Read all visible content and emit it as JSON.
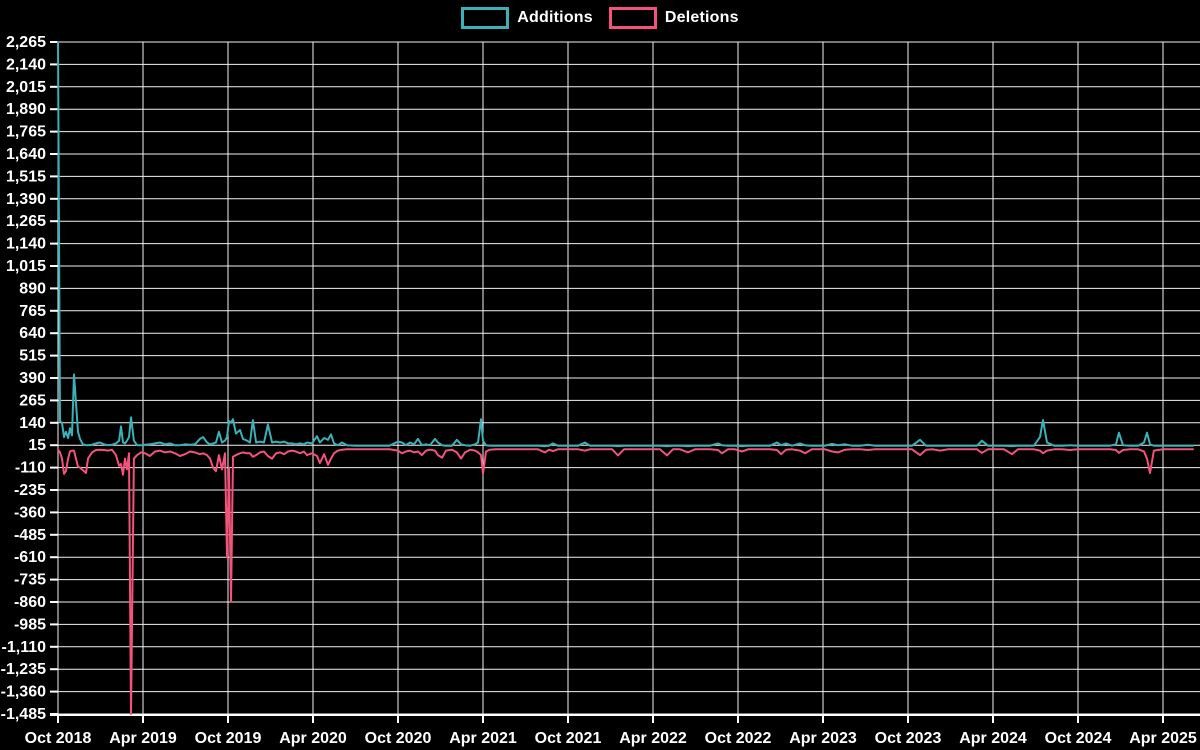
{
  "colors": {
    "background": "#000000",
    "grid": "#f2f2f2",
    "axis": "#ffffff",
    "text": "#ffffff",
    "additions": "#3ab1b8",
    "deletions": "#f4527a"
  },
  "legend": {
    "items": [
      {
        "label": "Additions",
        "color": "#3ab1b8"
      },
      {
        "label": "Deletions",
        "color": "#f4527a"
      }
    ]
  },
  "chart_data": {
    "type": "line",
    "title": "",
    "legend_position": "top-center",
    "grid": true,
    "x_axis": {
      "start": "Oct 2018",
      "end": "Apr 2025",
      "tick_interval_months": 6,
      "tick_labels": [
        "Oct 2018",
        "Apr 2019",
        "Oct 2019",
        "Apr 2020",
        "Oct 2020",
        "Apr 2021",
        "Oct 2021",
        "Apr 2022",
        "Oct 2022",
        "Apr 2023",
        "Oct 2023",
        "Apr 2024",
        "Oct 2024",
        "Apr 2025"
      ],
      "data_extends_to_months": 80.2
    },
    "y_axis": {
      "max": 2265,
      "min": -1485,
      "tick_step": 125,
      "tick_labels": [
        "2,265",
        "2,140",
        "2,015",
        "1,890",
        "1,765",
        "1,640",
        "1,515",
        "1,390",
        "1,265",
        "1,140",
        "1,015",
        "890",
        "765",
        "640",
        "515",
        "390",
        "265",
        "140",
        "15",
        "-110",
        "-235",
        "-360",
        "-485",
        "-610",
        "-735",
        "-860",
        "-985",
        "-1,110",
        "-1,235",
        "-1,360",
        "-1,485"
      ]
    },
    "series_names": [
      "Additions",
      "Deletions"
    ],
    "points_format": [
      "months_since_oct_2018",
      "additions",
      "deletions"
    ],
    "points": [
      [
        0,
        2265,
        -10
      ],
      [
        0.14,
        150,
        -25
      ],
      [
        0.28,
        140,
        -60
      ],
      [
        0.42,
        60,
        -145
      ],
      [
        0.56,
        90,
        -130
      ],
      [
        0.71,
        55,
        -60
      ],
      [
        0.85,
        110,
        -20
      ],
      [
        0.99,
        70,
        -15
      ],
      [
        1.13,
        410,
        -15
      ],
      [
        1.41,
        90,
        -105
      ],
      [
        1.55,
        50,
        -110
      ],
      [
        1.76,
        20,
        -125
      ],
      [
        1.98,
        15,
        -140
      ],
      [
        2.12,
        15,
        -60
      ],
      [
        2.4,
        18,
        -25
      ],
      [
        2.68,
        25,
        -12
      ],
      [
        2.96,
        30,
        -10
      ],
      [
        3.25,
        20,
        -12
      ],
      [
        3.53,
        15,
        -15
      ],
      [
        3.81,
        18,
        -10
      ],
      [
        4.09,
        25,
        -40
      ],
      [
        4.31,
        40,
        -100
      ],
      [
        4.45,
        120,
        -90
      ],
      [
        4.59,
        30,
        -150
      ],
      [
        4.73,
        25,
        -60
      ],
      [
        4.87,
        40,
        -120
      ],
      [
        5.01,
        60,
        -30
      ],
      [
        5.15,
        170,
        -1485
      ],
      [
        5.36,
        40,
        -60
      ],
      [
        5.58,
        15,
        -40
      ],
      [
        5.86,
        15,
        -25
      ],
      [
        6.14,
        18,
        -30
      ],
      [
        6.49,
        20,
        -45
      ],
      [
        6.85,
        25,
        -20
      ],
      [
        7.2,
        30,
        -15
      ],
      [
        7.55,
        20,
        -25
      ],
      [
        7.91,
        25,
        -20
      ],
      [
        8.26,
        15,
        -30
      ],
      [
        8.61,
        15,
        -45
      ],
      [
        8.96,
        20,
        -35
      ],
      [
        9.32,
        18,
        -20
      ],
      [
        9.67,
        20,
        -25
      ],
      [
        10.02,
        50,
        -35
      ],
      [
        10.24,
        60,
        -30
      ],
      [
        10.52,
        30,
        -40
      ],
      [
        10.73,
        20,
        -60
      ],
      [
        10.94,
        25,
        -110
      ],
      [
        11.15,
        30,
        -130
      ],
      [
        11.36,
        90,
        -40
      ],
      [
        11.58,
        30,
        -120
      ],
      [
        11.79,
        40,
        -30
      ],
      [
        11.93,
        60,
        -610
      ],
      [
        12.07,
        150,
        -110
      ],
      [
        12.21,
        140,
        -860
      ],
      [
        12.35,
        160,
        -50
      ],
      [
        12.56,
        80,
        -40
      ],
      [
        12.85,
        100,
        -30
      ],
      [
        13.06,
        50,
        -25
      ],
      [
        13.34,
        40,
        -30
      ],
      [
        13.55,
        30,
        -30
      ],
      [
        13.76,
        155,
        -50
      ],
      [
        13.98,
        30,
        -40
      ],
      [
        14.26,
        35,
        -25
      ],
      [
        14.54,
        30,
        -20
      ],
      [
        14.82,
        130,
        -45
      ],
      [
        15.11,
        30,
        -60
      ],
      [
        15.39,
        35,
        -30
      ],
      [
        15.67,
        30,
        -25
      ],
      [
        15.95,
        35,
        -35
      ],
      [
        16.24,
        25,
        -20
      ],
      [
        16.52,
        25,
        -15
      ],
      [
        16.8,
        20,
        -20
      ],
      [
        17.08,
        25,
        -30
      ],
      [
        17.36,
        20,
        -20
      ],
      [
        17.58,
        30,
        -40
      ],
      [
        17.93,
        25,
        -30
      ],
      [
        18.28,
        65,
        -45
      ],
      [
        18.49,
        30,
        -85
      ],
      [
        18.78,
        55,
        -35
      ],
      [
        19.06,
        45,
        -95
      ],
      [
        19.27,
        75,
        -60
      ],
      [
        19.48,
        25,
        -30
      ],
      [
        19.76,
        15,
        -15
      ],
      [
        20.05,
        30,
        -10
      ],
      [
        20.4,
        15,
        -8
      ],
      [
        21,
        12,
        -8
      ],
      [
        21.6,
        12,
        -8
      ],
      [
        22.2,
        12,
        -8
      ],
      [
        22.8,
        12,
        -8
      ],
      [
        23.4,
        12,
        -8
      ],
      [
        24,
        35,
        -15
      ],
      [
        24.28,
        30,
        -30
      ],
      [
        24.56,
        15,
        -20
      ],
      [
        24.85,
        30,
        -15
      ],
      [
        25.13,
        20,
        -25
      ],
      [
        25.41,
        50,
        -20
      ],
      [
        25.69,
        15,
        -40
      ],
      [
        25.98,
        20,
        -15
      ],
      [
        26.26,
        15,
        -10
      ],
      [
        26.61,
        50,
        -15
      ],
      [
        26.82,
        30,
        -40
      ],
      [
        27.11,
        15,
        -55
      ],
      [
        27.39,
        12,
        -15
      ],
      [
        27.81,
        12,
        -10
      ],
      [
        28.16,
        45,
        -25
      ],
      [
        28.45,
        20,
        -60
      ],
      [
        28.73,
        15,
        -25
      ],
      [
        29.08,
        12,
        -10
      ],
      [
        29.44,
        20,
        -15
      ],
      [
        29.65,
        30,
        -25
      ],
      [
        29.86,
        160,
        -40
      ],
      [
        30,
        40,
        -145
      ],
      [
        30.21,
        15,
        -20
      ],
      [
        30.49,
        12,
        -10
      ],
      [
        30.92,
        12,
        -8
      ],
      [
        31.41,
        12,
        -8
      ],
      [
        31.91,
        12,
        -8
      ],
      [
        32.47,
        12,
        -8
      ],
      [
        32.96,
        12,
        -8
      ],
      [
        33.46,
        12,
        -8
      ],
      [
        33.88,
        12,
        -8
      ],
      [
        34.38,
        10,
        -25
      ],
      [
        34.66,
        12,
        -10
      ],
      [
        34.94,
        25,
        -18
      ],
      [
        35.29,
        12,
        -8
      ],
      [
        35.72,
        12,
        -8
      ],
      [
        36.14,
        12,
        -8
      ],
      [
        36.71,
        12,
        -8
      ],
      [
        37.2,
        30,
        -15
      ],
      [
        37.55,
        12,
        -8
      ],
      [
        38.12,
        12,
        -8
      ],
      [
        38.68,
        12,
        -8
      ],
      [
        39.11,
        12,
        -8
      ],
      [
        39.53,
        10,
        -42
      ],
      [
        39.95,
        12,
        -8
      ],
      [
        40.52,
        12,
        -8
      ],
      [
        41.08,
        12,
        -8
      ],
      [
        41.65,
        12,
        -8
      ],
      [
        42,
        12,
        -8
      ],
      [
        42.49,
        12,
        -8
      ],
      [
        42.99,
        10,
        -42
      ],
      [
        43.41,
        12,
        -8
      ],
      [
        43.91,
        12,
        -8
      ],
      [
        44.47,
        10,
        -25
      ],
      [
        44.96,
        12,
        -8
      ],
      [
        45.53,
        12,
        -8
      ],
      [
        46.02,
        12,
        -8
      ],
      [
        46.59,
        25,
        -12
      ],
      [
        46.87,
        15,
        -30
      ],
      [
        47.29,
        12,
        -8
      ],
      [
        47.79,
        12,
        -8
      ],
      [
        48.28,
        10,
        -20
      ],
      [
        48.71,
        12,
        -8
      ],
      [
        49.2,
        12,
        -8
      ],
      [
        49.69,
        12,
        -8
      ],
      [
        50.26,
        12,
        -8
      ],
      [
        50.75,
        30,
        -12
      ],
      [
        51.04,
        15,
        -35
      ],
      [
        51.39,
        25,
        -10
      ],
      [
        51.81,
        12,
        -8
      ],
      [
        52.38,
        25,
        -15
      ],
      [
        52.73,
        15,
        -30
      ],
      [
        53.22,
        12,
        -8
      ],
      [
        53.65,
        12,
        -8
      ],
      [
        54.14,
        12,
        -8
      ],
      [
        54.64,
        22,
        -20
      ],
      [
        55.06,
        15,
        -25
      ],
      [
        55.55,
        20,
        -10
      ],
      [
        56.05,
        12,
        -8
      ],
      [
        56.61,
        12,
        -8
      ],
      [
        57.18,
        18,
        -12
      ],
      [
        57.67,
        12,
        -8
      ],
      [
        58.16,
        12,
        -8
      ],
      [
        58.73,
        12,
        -8
      ],
      [
        59.29,
        12,
        -8
      ],
      [
        59.79,
        12,
        -8
      ],
      [
        60.28,
        12,
        -8
      ],
      [
        60.85,
        45,
        -40
      ],
      [
        61.27,
        12,
        -10
      ],
      [
        61.76,
        12,
        -8
      ],
      [
        62.26,
        12,
        -15
      ],
      [
        62.82,
        12,
        -8
      ],
      [
        63.32,
        12,
        -8
      ],
      [
        63.81,
        12,
        -8
      ],
      [
        64.38,
        12,
        -8
      ],
      [
        64.87,
        12,
        -8
      ],
      [
        65.22,
        40,
        -28
      ],
      [
        65.65,
        12,
        -8
      ],
      [
        66.21,
        12,
        -8
      ],
      [
        66.78,
        12,
        -8
      ],
      [
        67.34,
        10,
        -35
      ],
      [
        67.76,
        12,
        -8
      ],
      [
        68.33,
        12,
        -8
      ],
      [
        68.89,
        12,
        -8
      ],
      [
        69.32,
        60,
        -15
      ],
      [
        69.53,
        155,
        -30
      ],
      [
        69.81,
        30,
        -15
      ],
      [
        70.31,
        12,
        -8
      ],
      [
        70.87,
        12,
        -8
      ],
      [
        71.44,
        15,
        -12
      ],
      [
        72,
        12,
        -8
      ],
      [
        72.56,
        12,
        -8
      ],
      [
        73.13,
        12,
        -8
      ],
      [
        73.69,
        12,
        -8
      ],
      [
        74.26,
        12,
        -8
      ],
      [
        74.68,
        20,
        -12
      ],
      [
        74.89,
        85,
        -28
      ],
      [
        75.18,
        15,
        -12
      ],
      [
        75.67,
        12,
        -8
      ],
      [
        76.24,
        12,
        -8
      ],
      [
        76.66,
        30,
        -20
      ],
      [
        76.87,
        85,
        -60
      ],
      [
        77.08,
        20,
        -140
      ],
      [
        77.36,
        12,
        -15
      ],
      [
        78,
        12,
        -8
      ],
      [
        78.64,
        12,
        -8
      ],
      [
        79.2,
        12,
        -8
      ],
      [
        79.76,
        12,
        -8
      ],
      [
        80.12,
        12,
        -8
      ]
    ]
  }
}
